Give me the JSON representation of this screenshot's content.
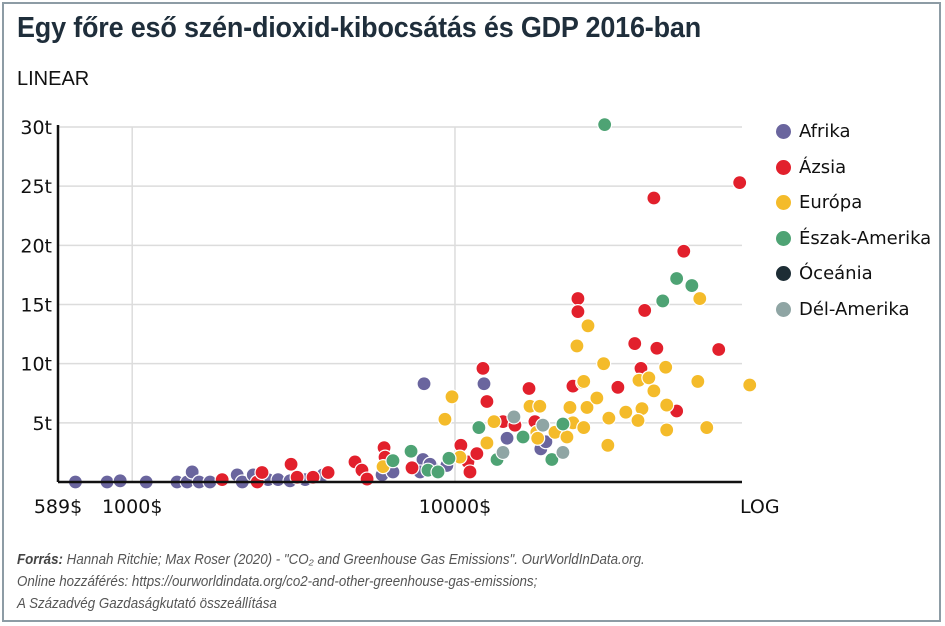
{
  "title": "Egy főre eső szén-dioxid-kibocsátás és GDP 2016-ban",
  "footer": {
    "source_label": "Forrás:",
    "line1": "Hannah Ritchie; Max Roser (2020) - \"CO₂ and Greenhouse Gas Emissions\". OurWorldInData.org.",
    "line2": "Online hozzáférés: https://ourworldindata.org/co2-and-other-greenhouse-gas-emissions;",
    "line3": "A Századvég Gazdaságkutató összeállítása"
  },
  "chart_data": {
    "type": "scatter",
    "title": "Egy főre eső szén-dioxid-kibocsátás és GDP 2016-ban",
    "y_scale_label": "LINEAR",
    "x_scale_label": "LOG",
    "x_scale": "log",
    "y_scale": "linear",
    "xlim": [
      589,
      77500
    ],
    "ylim": [
      0,
      30
    ],
    "x_ticks": [
      {
        "value": 589,
        "label": "589$"
      },
      {
        "value": 1000,
        "label": "1000$"
      },
      {
        "value": 10000,
        "label": "10000$"
      }
    ],
    "y_ticks": [
      {
        "value": 5,
        "label": "5t"
      },
      {
        "value": 10,
        "label": "10t"
      },
      {
        "value": 15,
        "label": "15t"
      },
      {
        "value": 20,
        "label": "20t"
      },
      {
        "value": 25,
        "label": "25t"
      },
      {
        "value": 30,
        "label": "30t"
      }
    ],
    "grid": true,
    "legend_position": "right",
    "series": [
      {
        "name": "Afrika",
        "color": "#6a659e",
        "points": [
          [
            667,
            0
          ],
          [
            836,
            0
          ],
          [
            918,
            0.1
          ],
          [
            1105,
            0
          ],
          [
            1377,
            0
          ],
          [
            1480,
            0
          ],
          [
            1534,
            0.85
          ],
          [
            1612,
            0
          ],
          [
            1742,
            0
          ],
          [
            2115,
            0.6
          ],
          [
            2193,
            0
          ],
          [
            2372,
            0.6
          ],
          [
            2636,
            0.2
          ],
          [
            2831,
            0.2
          ],
          [
            3083,
            0.1
          ],
          [
            3435,
            0.2
          ],
          [
            3900,
            0.6
          ],
          [
            5945,
            0.6
          ],
          [
            6425,
            0.85
          ],
          [
            8020,
            8.3
          ],
          [
            8074,
            1.7
          ],
          [
            8490,
            1.3
          ],
          [
            9440,
            1.4
          ],
          [
            7960,
            1.9
          ],
          [
            8370,
            1.5
          ],
          [
            7800,
            0.85
          ],
          [
            12300,
            8.3
          ],
          [
            14500,
            3.7
          ],
          [
            18450,
            2.8
          ],
          [
            19130,
            3.4
          ]
        ]
      },
      {
        "name": "Ázsia",
        "color": "#e2202c",
        "points": [
          [
            1900,
            0.2
          ],
          [
            2440,
            0
          ],
          [
            2525,
            0.8
          ],
          [
            3106,
            1.5
          ],
          [
            3243,
            0.4
          ],
          [
            3633,
            0.4
          ],
          [
            4045,
            0.8
          ],
          [
            4900,
            1.7
          ],
          [
            5150,
            1.0
          ],
          [
            5342,
            0.25
          ],
          [
            6030,
            2.9
          ],
          [
            6072,
            2.1
          ],
          [
            7360,
            1.2
          ],
          [
            10430,
            3.1
          ],
          [
            10970,
            1.7
          ],
          [
            11130,
            0.85
          ],
          [
            11690,
            2.4
          ],
          [
            12210,
            9.6
          ],
          [
            12560,
            6.8
          ],
          [
            14090,
            5.1
          ],
          [
            15340,
            4.8
          ],
          [
            16960,
            7.9
          ],
          [
            17690,
            5.1
          ],
          [
            23200,
            8.1
          ],
          [
            24040,
            15.5
          ],
          [
            24040,
            14.4
          ],
          [
            38710,
            14.5
          ],
          [
            36060,
            11.7
          ],
          [
            42220,
            11.3
          ],
          [
            65640,
            11.2
          ],
          [
            37690,
            9.6
          ],
          [
            31970,
            8.0
          ],
          [
            48620,
            6.0
          ],
          [
            76230,
            25.3
          ],
          [
            41330,
            24.0
          ],
          [
            51160,
            19.5
          ]
        ]
      },
      {
        "name": "Európa",
        "color": "#f4bb2a",
        "points": [
          [
            5987,
            1.3
          ],
          [
            9790,
            7.2
          ],
          [
            9310,
            5.3
          ],
          [
            10360,
            2.1
          ],
          [
            12560,
            3.3
          ],
          [
            13210,
            5.1
          ],
          [
            17080,
            6.4
          ],
          [
            18320,
            6.4
          ],
          [
            17930,
            4.2
          ],
          [
            18040,
            3.7
          ],
          [
            20410,
            4.2
          ],
          [
            22230,
            3.8
          ],
          [
            22710,
            6.3
          ],
          [
            23200,
            5.0
          ],
          [
            25060,
            4.6
          ],
          [
            25650,
            6.3
          ],
          [
            24880,
            8.4
          ],
          [
            27520,
            7.1
          ],
          [
            25060,
            8.5
          ],
          [
            25830,
            13.2
          ],
          [
            23870,
            11.5
          ],
          [
            28880,
            10.0
          ],
          [
            44970,
            9.7
          ],
          [
            37160,
            8.6
          ],
          [
            39880,
            8.8
          ],
          [
            56550,
            8.5
          ],
          [
            81900,
            8.2
          ],
          [
            41330,
            7.7
          ],
          [
            45290,
            6.5
          ],
          [
            37960,
            6.2
          ],
          [
            33830,
            5.9
          ],
          [
            29980,
            5.4
          ],
          [
            36900,
            5.2
          ],
          [
            45290,
            4.4
          ],
          [
            60270,
            4.6
          ],
          [
            29760,
            3.1
          ],
          [
            57340,
            15.5
          ]
        ]
      },
      {
        "name": "Észak-Amerika",
        "color": "#4ea374",
        "points": [
          [
            6425,
            1.8
          ],
          [
            7310,
            2.6
          ],
          [
            8250,
            1.0
          ],
          [
            8860,
            0.85
          ],
          [
            9580,
            2.0
          ],
          [
            11860,
            4.6
          ],
          [
            13500,
            1.9
          ],
          [
            16250,
            3.8
          ],
          [
            19960,
            1.9
          ],
          [
            21600,
            4.9
          ],
          [
            29090,
            30.2
          ],
          [
            48620,
            17.2
          ],
          [
            54190,
            16.6
          ],
          [
            44030,
            15.3
          ]
        ]
      },
      {
        "name": "Óceánia",
        "color": "#1d2d35",
        "points": []
      },
      {
        "name": "Dél-Amerika",
        "color": "#8fa5a4",
        "points": [
          [
            15230,
            5.5
          ],
          [
            18720,
            4.8
          ],
          [
            14090,
            2.5
          ],
          [
            21600,
            2.5
          ]
        ]
      }
    ]
  }
}
